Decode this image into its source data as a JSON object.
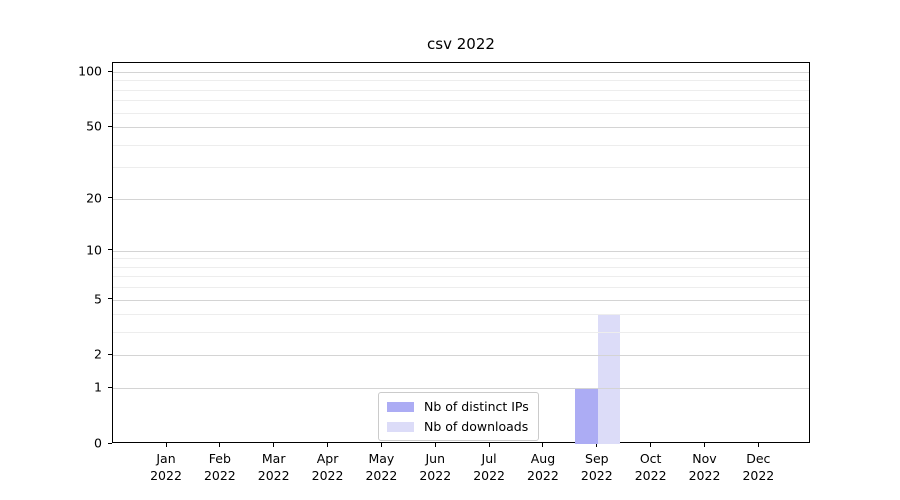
{
  "chart_data": {
    "type": "bar",
    "title": "csv 2022",
    "xlabel": "",
    "ylabel": "",
    "yscale": "log1p",
    "ylim": [
      0,
      112
    ],
    "grid": true,
    "legend_position": "inside-bottom-center",
    "yticks": [
      100,
      50,
      20,
      10,
      5,
      2,
      1,
      0
    ],
    "y_minor_gridlines": [
      3,
      4,
      6,
      7,
      8,
      9,
      30,
      40,
      60,
      70,
      80,
      90
    ],
    "categories": [
      {
        "month": "Jan",
        "year": "2022"
      },
      {
        "month": "Feb",
        "year": "2022"
      },
      {
        "month": "Mar",
        "year": "2022"
      },
      {
        "month": "Apr",
        "year": "2022"
      },
      {
        "month": "May",
        "year": "2022"
      },
      {
        "month": "Jun",
        "year": "2022"
      },
      {
        "month": "Jul",
        "year": "2022"
      },
      {
        "month": "Aug",
        "year": "2022"
      },
      {
        "month": "Sep",
        "year": "2022"
      },
      {
        "month": "Oct",
        "year": "2022"
      },
      {
        "month": "Nov",
        "year": "2022"
      },
      {
        "month": "Dec",
        "year": "2022"
      }
    ],
    "series": [
      {
        "name": "Nb of distinct IPs",
        "color": "#acacf4",
        "values": [
          0,
          0,
          0,
          0,
          0,
          0,
          0,
          0,
          1,
          0,
          0,
          0
        ]
      },
      {
        "name": "Nb of downloads",
        "color": "#dcdcf8",
        "values": [
          0,
          0,
          0,
          0,
          0,
          0,
          0,
          0,
          4,
          0,
          0,
          0
        ]
      }
    ]
  },
  "colors": {
    "major_grid": "#d4d4d4",
    "minor_grid": "#ededed",
    "axis": "#000000",
    "legend_border": "#cbcbcb"
  }
}
